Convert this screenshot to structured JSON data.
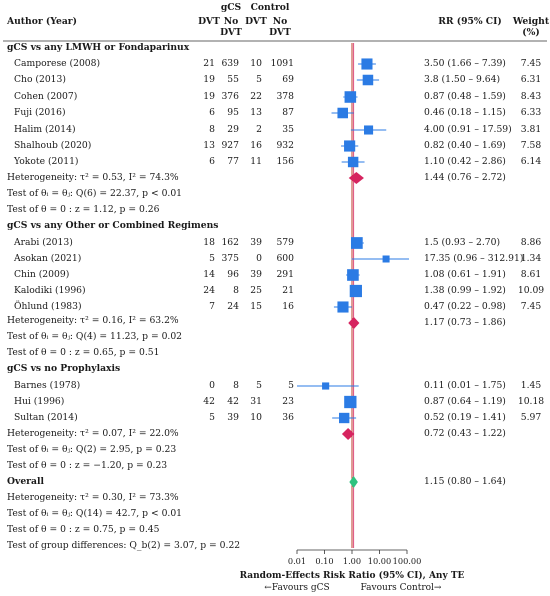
{
  "header": {
    "author_year": "Author (Year)",
    "gcs": "gCS",
    "control": "Control",
    "dvt": "DVT",
    "no_dvt_line1": "No",
    "no_dvt_line2": "DVT",
    "rr": "RR (95% CI)",
    "weight_line1": "Weight",
    "weight_line2": "(%)"
  },
  "chart_data": {
    "type": "forest",
    "xlabel": "Random-Effects Risk Ratio (95% CI), Any TE",
    "x_scale": "log",
    "x_ticks": [
      "0.01",
      "0.10",
      "1.00",
      "10.00",
      "100.00"
    ],
    "x_tick_values": [
      0.01,
      0.1,
      1,
      10,
      100
    ],
    "favours_left": "←Favours gCS",
    "favours_right": "Favours Control→",
    "reference_line": 1,
    "groups": [
      {
        "title": "gCS vs any LMWH or Fondaparinux",
        "studies": [
          {
            "name": "Camporese (2008)",
            "gcs_dvt": "21",
            "gcs_no": "639",
            "ctl_dvt": "10",
            "ctl_no": "1091",
            "rr_text": "3.50 (1.66 – 7.39)",
            "weight": "7.45",
            "rr": 3.5,
            "lo": 1.66,
            "hi": 7.39
          },
          {
            "name": "Cho (2013)",
            "gcs_dvt": "19",
            "gcs_no": "55",
            "ctl_dvt": "5",
            "ctl_no": "69",
            "rr_text": "3.8 (1.50 – 9.64)",
            "weight": "6.31",
            "rr": 3.8,
            "lo": 1.5,
            "hi": 9.64
          },
          {
            "name": "Cohen (2007)",
            "gcs_dvt": "19",
            "gcs_no": "376",
            "ctl_dvt": "22",
            "ctl_no": "378",
            "rr_text": "0.87 (0.48 – 1.59)",
            "weight": "8.43",
            "rr": 0.87,
            "lo": 0.48,
            "hi": 1.59
          },
          {
            "name": "Fuji (2016)",
            "gcs_dvt": "6",
            "gcs_no": "95",
            "ctl_dvt": "13",
            "ctl_no": "87",
            "rr_text": "0.46 (0.18 – 1.15)",
            "weight": "6.33",
            "rr": 0.46,
            "lo": 0.18,
            "hi": 1.15
          },
          {
            "name": "Halim (2014)",
            "gcs_dvt": "8",
            "gcs_no": "29",
            "ctl_dvt": "2",
            "ctl_no": "35",
            "rr_text": "4.00 (0.91 – 17.59)",
            "weight": "3.81",
            "rr": 4.0,
            "lo": 0.91,
            "hi": 17.59
          },
          {
            "name": "Shalhoub (2020)",
            "gcs_dvt": "13",
            "gcs_no": "927",
            "ctl_dvt": "16",
            "ctl_no": "932",
            "rr_text": "0.82 (0.40 – 1.69)",
            "weight": "7.58",
            "rr": 0.82,
            "lo": 0.4,
            "hi": 1.69
          },
          {
            "name": "Yokote (2011)",
            "gcs_dvt": "6",
            "gcs_no": "77",
            "ctl_dvt": "11",
            "ctl_no": "156",
            "rr_text": "1.10 (0.42 – 2.86)",
            "weight": "6.14",
            "rr": 1.1,
            "lo": 0.42,
            "hi": 2.86
          }
        ],
        "pooled": {
          "rr": 1.44,
          "lo": 0.76,
          "hi": 2.72,
          "rr_text": "1.44 (0.76 – 2.72)",
          "color": "#d6245f"
        },
        "heterogeneity": "Heterogeneity: τ² = 0.53, I² = 74.3%",
        "test_q": "Test of θᵢ = θⱼ: Q(6) = 22.37, p < 0.01",
        "test_z": "Test of θ = 0 : z = 1.12, p = 0.26"
      },
      {
        "title": "gCS vs any Other or Combined Regimens",
        "studies": [
          {
            "name": "Arabi (2013)",
            "gcs_dvt": "18",
            "gcs_no": "162",
            "ctl_dvt": "39",
            "ctl_no": "579",
            "rr_text": "1.5 (0.93 – 2.70)",
            "weight": "8.86",
            "rr": 1.5,
            "lo": 0.93,
            "hi": 2.7
          },
          {
            "name": "Asokan (2021)",
            "gcs_dvt": "5",
            "gcs_no": "375",
            "ctl_dvt": "0",
            "ctl_no": "600",
            "rr_text": "17.35 (0.96 – 312.91)",
            "weight": "1.34",
            "rr": 17.35,
            "lo": 0.96,
            "hi": 312.91
          },
          {
            "name": "Chin (2009)",
            "gcs_dvt": "14",
            "gcs_no": "96",
            "ctl_dvt": "39",
            "ctl_no": "291",
            "rr_text": "1.08 (0.61 – 1.91)",
            "weight": "8.61",
            "rr": 1.08,
            "lo": 0.61,
            "hi": 1.91
          },
          {
            "name": "Kalodiki (1996)",
            "gcs_dvt": "24",
            "gcs_no": "8",
            "ctl_dvt": "25",
            "ctl_no": "21",
            "rr_text": "1.38 (0.99 – 1.92)",
            "weight": "10.09",
            "rr": 1.38,
            "lo": 0.99,
            "hi": 1.92
          },
          {
            "name": "Öhlund (1983)",
            "gcs_dvt": "7",
            "gcs_no": "24",
            "ctl_dvt": "15",
            "ctl_no": "16",
            "rr_text": "0.47 (0.22 – 0.98)",
            "weight": "7.45",
            "rr": 0.47,
            "lo": 0.22,
            "hi": 0.98
          }
        ],
        "pooled": {
          "rr": 1.17,
          "lo": 0.73,
          "hi": 1.86,
          "rr_text": "1.17 (0.73 – 1.86)",
          "color": "#d6245f"
        },
        "heterogeneity": "Heterogeneity: τ² = 0.16, I² = 63.2%",
        "test_q": "Test of θᵢ = θⱼ: Q(4) = 11.23, p = 0.02",
        "test_z": "Test of θ = 0 : z = 0.65, p = 0.51"
      },
      {
        "title": "gCS vs no Prophylaxis",
        "studies": [
          {
            "name": "Barnes (1978)",
            "gcs_dvt": "0",
            "gcs_no": "8",
            "ctl_dvt": "5",
            "ctl_no": "5",
            "rr_text": "0.11 (0.01 – 1.75)",
            "weight": "1.45",
            "rr": 0.11,
            "lo": 0.01,
            "hi": 1.75
          },
          {
            "name": "Hui (1996)",
            "gcs_dvt": "42",
            "gcs_no": "42",
            "ctl_dvt": "31",
            "ctl_no": "23",
            "rr_text": "0.87 (0.64 – 1.19)",
            "weight": "10.18",
            "rr": 0.87,
            "lo": 0.64,
            "hi": 1.19
          },
          {
            "name": "Sultan (2014)",
            "gcs_dvt": "5",
            "gcs_no": "39",
            "ctl_dvt": "10",
            "ctl_no": "36",
            "rr_text": "0.52 (0.19 – 1.41)",
            "weight": "5.97",
            "rr": 0.52,
            "lo": 0.19,
            "hi": 1.41
          }
        ],
        "pooled": {
          "rr": 0.72,
          "lo": 0.43,
          "hi": 1.22,
          "rr_text": "0.72 (0.43 – 1.22)",
          "color": "#d6245f"
        },
        "heterogeneity": "Heterogeneity: τ² = 0.07, I² = 22.0%",
        "test_q": "Test of θᵢ = θⱼ: Q(2) = 2.95, p = 0.23",
        "test_z": "Test of θ = 0 : z = −1.20, p = 0.23"
      }
    ],
    "overall": {
      "title": "Overall",
      "rr": 1.15,
      "lo": 0.8,
      "hi": 1.64,
      "rr_text": "1.15 (0.80 – 1.64)",
      "color": "#2ec27e",
      "heterogeneity": "Heterogeneity: τ² = 0.30, I² = 73.3%",
      "test_q": "Test of θᵢ = θⱼ: Q(14) = 42.7, p < 0.01",
      "test_z": "Test of θ = 0 : z = 0.75, p = 0.45",
      "test_group": "Test of group differences: Q_b(2) = 3.07, p = 0.22"
    },
    "colors": {
      "square": "#2b7be4",
      "ci_line": "#2b7be4",
      "ref_line": "#c0392b",
      "overall_line": "#d6245f"
    }
  }
}
